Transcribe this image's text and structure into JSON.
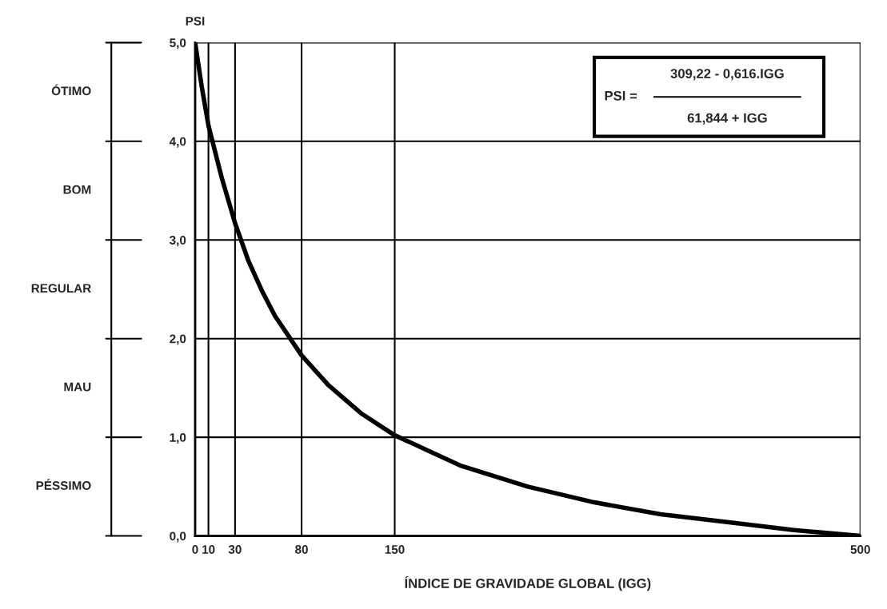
{
  "chart_data": {
    "type": "line",
    "xlabel": "ÍNDICE DE GRAVIDADE GLOBAL (IGG)",
    "ylabel": "PSI",
    "x": [
      0,
      5,
      10,
      20,
      30,
      40,
      50,
      60,
      80,
      100,
      125,
      150,
      200,
      250,
      300,
      350,
      400,
      450,
      500
    ],
    "series": [
      {
        "color": "#000000",
        "values": [
          5.0,
          4.55,
          4.16,
          3.63,
          3.17,
          2.79,
          2.49,
          2.23,
          1.83,
          1.53,
          1.24,
          1.02,
          0.71,
          0.5,
          0.34,
          0.22,
          0.14,
          0.06,
          0.0
        ]
      }
    ],
    "xlim": [
      0,
      500
    ],
    "xticks": [
      0,
      10,
      30,
      80,
      150,
      500
    ],
    "ylim": [
      0,
      5
    ],
    "yticks": [
      {
        "value": 0,
        "label": "0,0"
      },
      {
        "value": 1,
        "label": "1,0"
      },
      {
        "value": 2,
        "label": "2,0"
      },
      {
        "value": 3,
        "label": "3,0"
      },
      {
        "value": 4,
        "label": "4,0"
      },
      {
        "value": 5,
        "label": "5,0"
      }
    ],
    "grid": true,
    "marker": "none",
    "line_style": "solid",
    "annotations": [
      "ÓTIMO",
      "BOM",
      "REGULAR",
      "MAU",
      "PÉSSIMO",
      "PSI =",
      "309,22 - 0,616.IGG",
      "61,844 + IGG"
    ]
  }
}
